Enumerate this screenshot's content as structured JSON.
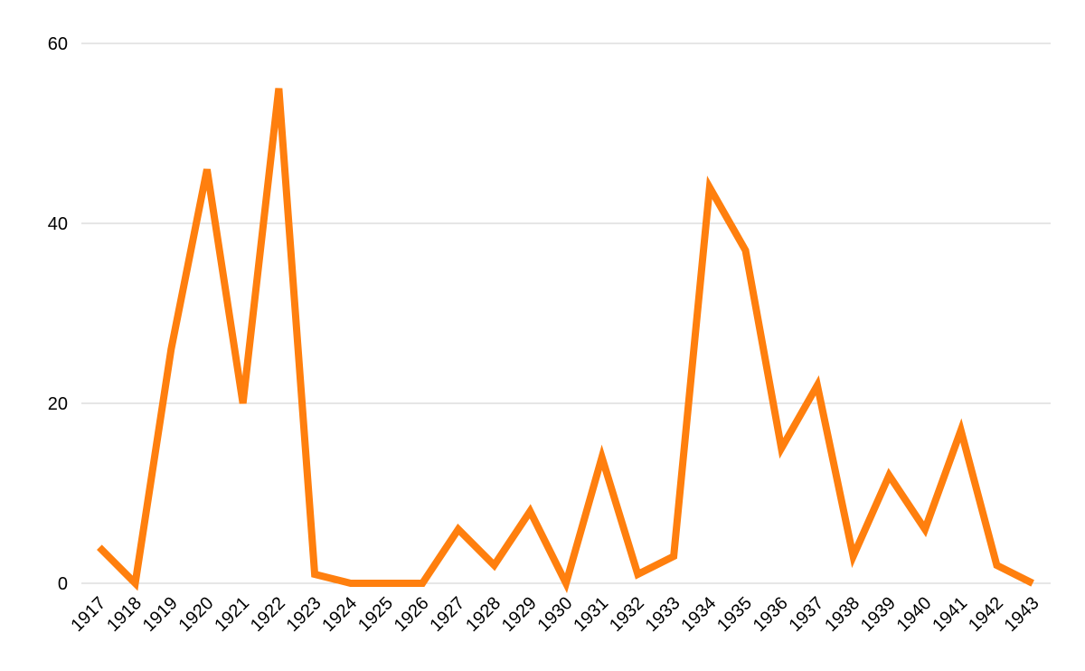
{
  "chart_data": {
    "type": "line",
    "categories": [
      "1917",
      "1918",
      "1919",
      "1920",
      "1921",
      "1922",
      "1923",
      "1924",
      "1925",
      "1926",
      "1927",
      "1928",
      "1929",
      "1930",
      "1931",
      "1932",
      "1933",
      "1934",
      "1935",
      "1936",
      "1937",
      "1938",
      "1939",
      "1940",
      "1941",
      "1942",
      "1943"
    ],
    "values": [
      4,
      0,
      26,
      46,
      20,
      55,
      1,
      0,
      0,
      0,
      6,
      2,
      8,
      0,
      14,
      1,
      3,
      44,
      37,
      15,
      22,
      3,
      12,
      6,
      17,
      2,
      0
    ],
    "color": "#ff7f0e",
    "ylim": [
      0,
      60
    ],
    "yticks": [
      0,
      20,
      40,
      60
    ],
    "grid": true
  }
}
